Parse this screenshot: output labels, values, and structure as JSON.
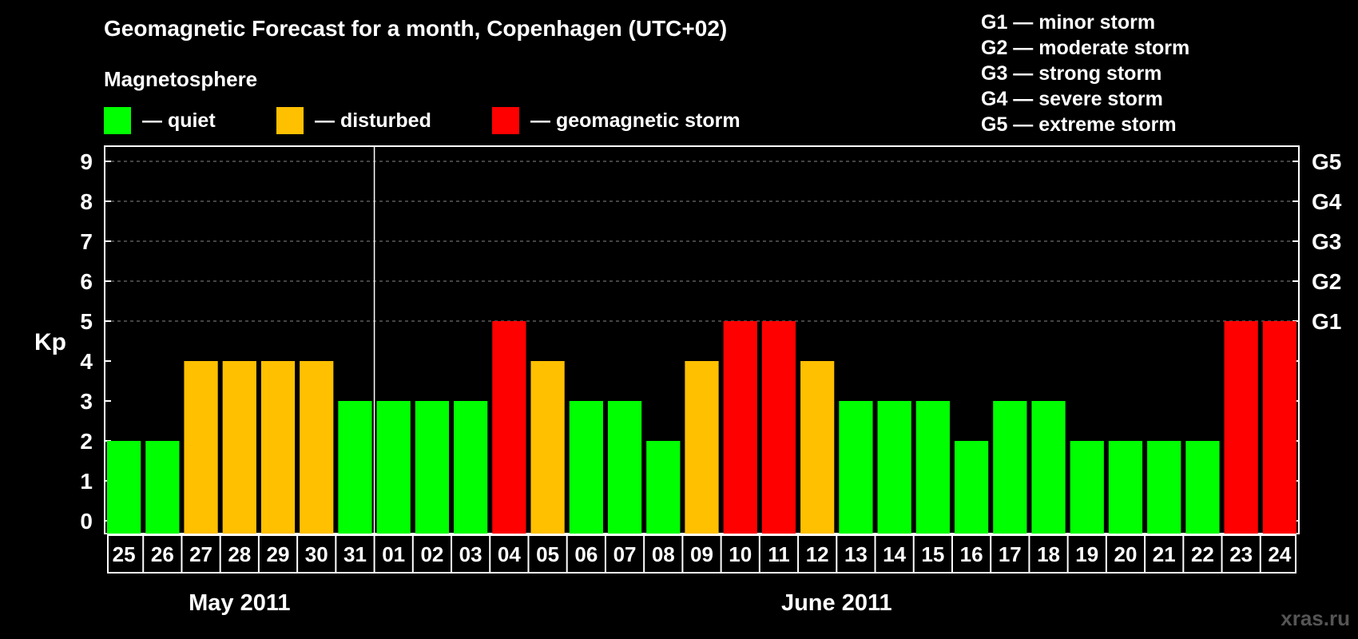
{
  "title": "Geomagnetic Forecast for a month, Copenhagen (UTC+02)",
  "legend": {
    "heading": "Magnetosphere",
    "items": [
      {
        "label": "— quiet",
        "color": "#00ff00"
      },
      {
        "label": "— disturbed",
        "color": "#ffc000"
      },
      {
        "label": "— geomagnetic storm",
        "color": "#ff0000"
      }
    ]
  },
  "storm_scale": [
    "G1 — minor storm",
    "G2 — moderate storm",
    "G3 — strong storm",
    "G4 — severe storm",
    "G5 — extreme storm"
  ],
  "watermark": "xras.ru",
  "chart_data": {
    "type": "bar",
    "ylabel": "Kp",
    "ylim": [
      0,
      9
    ],
    "y_ticks": [
      0,
      1,
      2,
      3,
      4,
      5,
      6,
      7,
      8,
      9
    ],
    "right_axis_labels": [
      {
        "y": 5,
        "label": "G1"
      },
      {
        "y": 6,
        "label": "G2"
      },
      {
        "y": 7,
        "label": "G3"
      },
      {
        "y": 8,
        "label": "G4"
      },
      {
        "y": 9,
        "label": "G5"
      }
    ],
    "grid": "horizontal dashed at Kp 5–9",
    "categories": [
      "25",
      "26",
      "27",
      "28",
      "29",
      "30",
      "31",
      "01",
      "02",
      "03",
      "04",
      "05",
      "06",
      "07",
      "08",
      "09",
      "10",
      "11",
      "12",
      "13",
      "14",
      "15",
      "16",
      "17",
      "18",
      "19",
      "20",
      "21",
      "22",
      "23",
      "24"
    ],
    "values": [
      2,
      2,
      4,
      4,
      4,
      4,
      3,
      3,
      3,
      3,
      5,
      4,
      3,
      3,
      2,
      4,
      5,
      5,
      4,
      3,
      3,
      3,
      2,
      3,
      3,
      2,
      2,
      2,
      2,
      5,
      5
    ],
    "colors": {
      "quiet": "#00ff00",
      "disturbed": "#ffc000",
      "storm": "#ff0000"
    },
    "months": [
      {
        "label": "May 2011",
        "start": 0,
        "end": 6
      },
      {
        "label": "June 2011",
        "start": 7,
        "end": 30
      }
    ]
  }
}
